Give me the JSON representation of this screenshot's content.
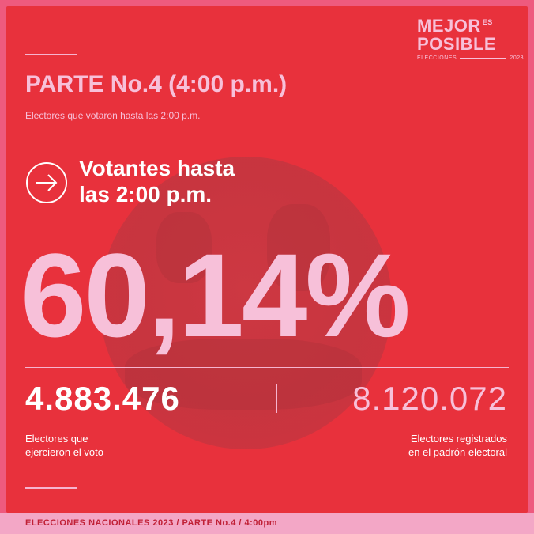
{
  "logo": {
    "line1": "MEJOR",
    "es": "ES",
    "line2": "POSIBLE",
    "sub_left": "ELECCIONES",
    "sub_right": "2023"
  },
  "header": {
    "title": "PARTE No.4 (4:00 p.m.)",
    "subtitle": "Electores que votaron hasta las 2:00 p.m."
  },
  "headline": {
    "line1": "Votantes hasta",
    "line2_prefix": "las ",
    "line2_bold": "2:00 p.m."
  },
  "stats": {
    "percent": "60,14%",
    "voters": "4.883.476",
    "registered": "8.120.072",
    "voters_caption_1": "Electores que",
    "voters_caption_2": "ejercieron el voto",
    "registered_caption_1": "Electores registrados",
    "registered_caption_2": "en el padrón electoral"
  },
  "footer": {
    "text": "ELECCIONES NACIONALES 2023 / PARTE No.4 / 4:00pm"
  },
  "colors": {
    "background_red": "#e8313c",
    "accent_pink": "#f7c0d9",
    "footer_pink": "#f3a7c6"
  },
  "icons": {
    "arrow": "arrow-right-circle-icon"
  }
}
